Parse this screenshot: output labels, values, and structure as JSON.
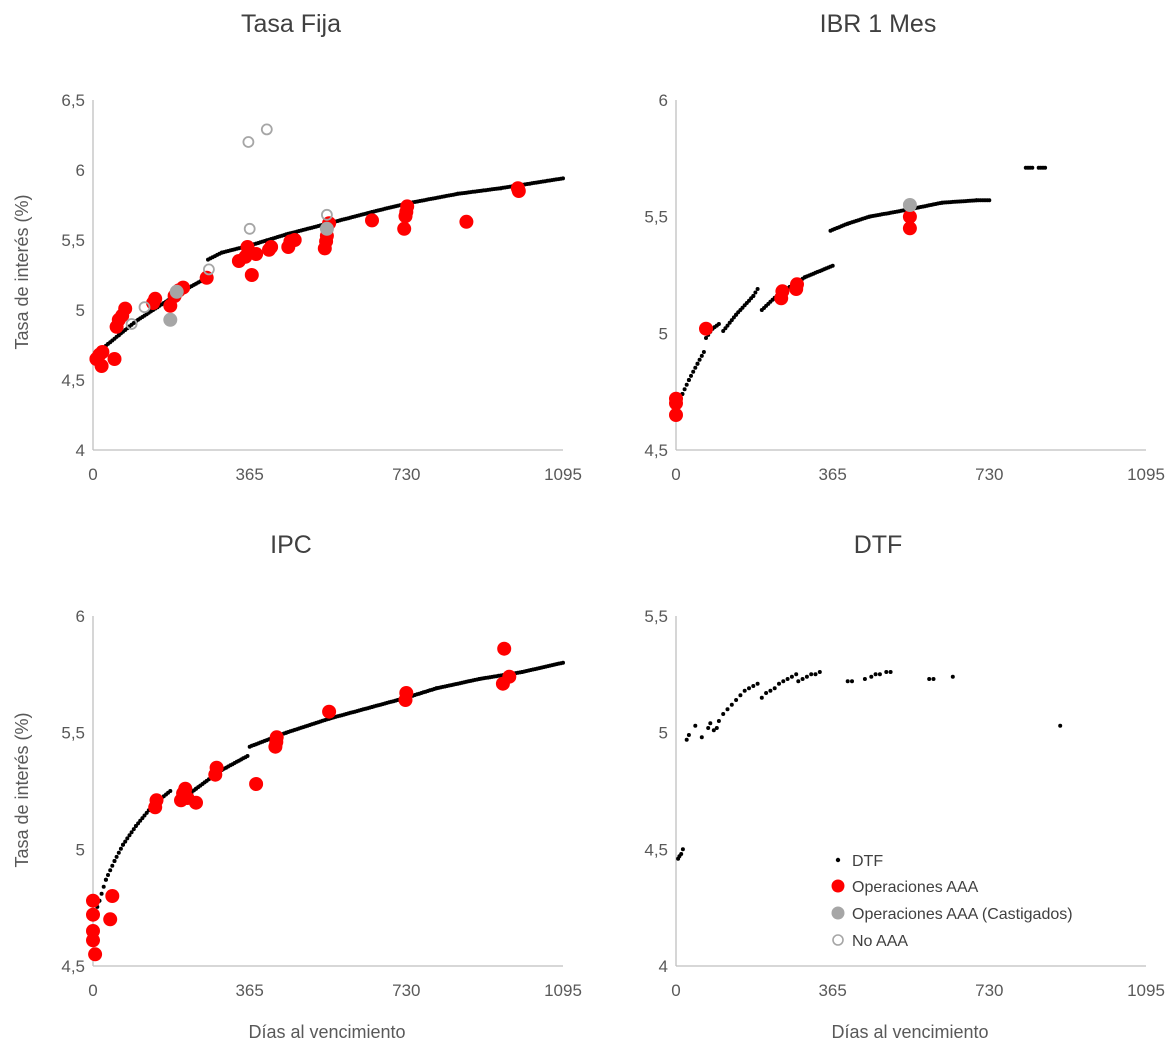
{
  "colors": {
    "curve": "#000000",
    "aaa": "#ff0000",
    "castigados": "#a6a6a6",
    "no_aaa": "#a6a6a6",
    "axis": "#bfbfbf",
    "text": "#595959"
  },
  "legend": {
    "items": [
      {
        "key": "curve",
        "label": "DTF",
        "marker": "small-dot"
      },
      {
        "key": "aaa",
        "label": "Operaciones AAA",
        "marker": "filled-circle"
      },
      {
        "key": "castigados",
        "label": "Operaciones AAA (Castigados)",
        "marker": "filled-circle"
      },
      {
        "key": "no_aaa",
        "label": "No AAA",
        "marker": "hollow-circle"
      }
    ]
  },
  "chart_data": [
    {
      "type": "scatter",
      "title": "Tasa Fija",
      "ylabel": "Tasa de interés (%)",
      "xlabel": "",
      "xlim": [
        0,
        1095
      ],
      "ylim": [
        4,
        6.5
      ],
      "xticks": [
        0,
        365,
        730,
        1095
      ],
      "xtick_labels": [
        "0",
        "365",
        "730",
        "1095"
      ],
      "yticks": [
        4,
        4.5,
        5,
        5.5,
        6,
        6.5
      ],
      "ytick_labels": [
        "4",
        "4,5",
        "5",
        "5,5",
        "6",
        "6,5"
      ],
      "curve": {
        "segments": [
          [
            [
              0,
              4.66
            ],
            [
              20,
              4.72
            ],
            [
              60,
              4.82
            ],
            [
              100,
              4.92
            ],
            [
              150,
              5.02
            ],
            [
              200,
              5.12
            ],
            [
              265,
              5.23
            ]
          ],
          [
            [
              268,
              5.36
            ],
            [
              300,
              5.41
            ],
            [
              365,
              5.46
            ],
            [
              450,
              5.54
            ],
            [
              550,
              5.62
            ],
            [
              650,
              5.7
            ],
            [
              730,
              5.76
            ],
            [
              850,
              5.83
            ],
            [
              950,
              5.87
            ],
            [
              1095,
              5.94
            ]
          ]
        ]
      },
      "series": [
        {
          "name": "Operaciones AAA",
          "points": [
            [
              8,
              4.65
            ],
            [
              15,
              4.68
            ],
            [
              20,
              4.6
            ],
            [
              22,
              4.7
            ],
            [
              50,
              4.65
            ],
            [
              55,
              4.88
            ],
            [
              60,
              4.93
            ],
            [
              68,
              4.96
            ],
            [
              75,
              5.01
            ],
            [
              140,
              5.05
            ],
            [
              145,
              5.08
            ],
            [
              180,
              5.03
            ],
            [
              190,
              5.1
            ],
            [
              200,
              5.14
            ],
            [
              210,
              5.16
            ],
            [
              265,
              5.23
            ],
            [
              340,
              5.35
            ],
            [
              355,
              5.38
            ],
            [
              360,
              5.45
            ],
            [
              365,
              5.41
            ],
            [
              370,
              5.25
            ],
            [
              380,
              5.4
            ],
            [
              410,
              5.43
            ],
            [
              415,
              5.45
            ],
            [
              455,
              5.45
            ],
            [
              460,
              5.49
            ],
            [
              470,
              5.5
            ],
            [
              540,
              5.44
            ],
            [
              543,
              5.49
            ],
            [
              545,
              5.53
            ],
            [
              550,
              5.62
            ],
            [
              650,
              5.64
            ],
            [
              725,
              5.58
            ],
            [
              728,
              5.67
            ],
            [
              730,
              5.7
            ],
            [
              732,
              5.74
            ],
            [
              870,
              5.63
            ],
            [
              990,
              5.87
            ],
            [
              992,
              5.85
            ]
          ]
        },
        {
          "name": "Operaciones AAA (Castigados)",
          "points": [
            [
              180,
              4.93
            ],
            [
              195,
              5.13
            ],
            [
              545,
              5.58
            ]
          ]
        },
        {
          "name": "No AAA",
          "points": [
            [
              90,
              4.9
            ],
            [
              120,
              5.02
            ],
            [
              270,
              5.29
            ],
            [
              365,
              5.58
            ],
            [
              362,
              6.2
            ],
            [
              405,
              6.29
            ],
            [
              545,
              5.68
            ]
          ]
        }
      ]
    },
    {
      "type": "scatter",
      "title": "IBR 1 Mes",
      "ylabel": "",
      "xlabel": "",
      "xlim": [
        0,
        1095
      ],
      "ylim": [
        4.5,
        6
      ],
      "xticks": [
        0,
        365,
        730,
        1095
      ],
      "xtick_labels": [
        "0",
        "365",
        "730",
        "1095"
      ],
      "yticks": [
        4.5,
        5,
        5.5,
        6
      ],
      "ytick_labels": [
        "4,5",
        "5",
        "5,5",
        "6"
      ],
      "curve": {
        "segments": [
          [
            [
              0,
              4.68
            ],
            [
              15,
              4.74
            ],
            [
              30,
              4.8
            ],
            [
              50,
              4.87
            ],
            [
              65,
              4.92
            ]
          ],
          [
            [
              70,
              4.98
            ],
            [
              85,
              5.02
            ],
            [
              100,
              5.04
            ]
          ],
          [
            [
              110,
              5.01
            ],
            [
              140,
              5.08
            ],
            [
              180,
              5.16
            ],
            [
              190,
              5.19
            ]
          ],
          [
            [
              200,
              5.1
            ],
            [
              240,
              5.17
            ],
            [
              300,
              5.24
            ],
            [
              365,
              5.29
            ]
          ],
          [
            [
              360,
              5.44
            ],
            [
              400,
              5.47
            ],
            [
              450,
              5.5
            ],
            [
              540,
              5.53
            ],
            [
              620,
              5.56
            ],
            [
              700,
              5.57
            ],
            [
              730,
              5.57
            ]
          ],
          [
            [
              815,
              5.71
            ],
            [
              830,
              5.71
            ]
          ],
          [
            [
              845,
              5.71
            ],
            [
              860,
              5.71
            ]
          ]
        ]
      },
      "series": [
        {
          "name": "Operaciones AAA",
          "points": [
            [
              0,
              4.65
            ],
            [
              0,
              4.7
            ],
            [
              0,
              4.72
            ],
            [
              70,
              5.02
            ],
            [
              245,
              5.15
            ],
            [
              248,
              5.18
            ],
            [
              280,
              5.19
            ],
            [
              282,
              5.21
            ],
            [
              545,
              5.45
            ],
            [
              545,
              5.5
            ]
          ]
        },
        {
          "name": "Operaciones AAA (Castigados)",
          "points": [
            [
              545,
              5.55
            ]
          ]
        },
        {
          "name": "No AAA",
          "points": []
        }
      ]
    },
    {
      "type": "scatter",
      "title": "IPC",
      "ylabel": "Tasa de interés (%)",
      "xlabel": "Días al vencimiento",
      "xlim": [
        0,
        1095
      ],
      "ylim": [
        4.5,
        6
      ],
      "xticks": [
        0,
        365,
        730,
        1095
      ],
      "xtick_labels": [
        "0",
        "365",
        "730",
        "1095"
      ],
      "yticks": [
        4.5,
        5,
        5.5,
        6
      ],
      "ytick_labels": [
        "4,5",
        "5",
        "5,5",
        "6"
      ],
      "curve": {
        "segments": [
          [
            [
              0,
              4.7
            ],
            [
              15,
              4.78
            ],
            [
              30,
              4.87
            ],
            [
              50,
              4.95
            ],
            [
              70,
              5.02
            ],
            [
              100,
              5.1
            ],
            [
              140,
              5.19
            ],
            [
              180,
              5.25
            ]
          ],
          [
            [
              200,
              5.2
            ],
            [
              240,
              5.26
            ],
            [
              300,
              5.34
            ],
            [
              360,
              5.4
            ]
          ],
          [
            [
              365,
              5.44
            ],
            [
              450,
              5.5
            ],
            [
              550,
              5.56
            ],
            [
              650,
              5.61
            ],
            [
              730,
              5.65
            ],
            [
              800,
              5.69
            ],
            [
              900,
              5.73
            ],
            [
              1000,
              5.76
            ],
            [
              1095,
              5.8
            ]
          ]
        ]
      },
      "series": [
        {
          "name": "Operaciones AAA",
          "points": [
            [
              0,
              4.61
            ],
            [
              0,
              4.65
            ],
            [
              0,
              4.72
            ],
            [
              0,
              4.78
            ],
            [
              5,
              4.55
            ],
            [
              40,
              4.7
            ],
            [
              45,
              4.8
            ],
            [
              145,
              5.18
            ],
            [
              148,
              5.21
            ],
            [
              205,
              5.21
            ],
            [
              210,
              5.24
            ],
            [
              215,
              5.26
            ],
            [
              220,
              5.22
            ],
            [
              240,
              5.2
            ],
            [
              285,
              5.32
            ],
            [
              288,
              5.35
            ],
            [
              380,
              5.28
            ],
            [
              425,
              5.44
            ],
            [
              427,
              5.46
            ],
            [
              428,
              5.48
            ],
            [
              550,
              5.59
            ],
            [
              728,
              5.64
            ],
            [
              730,
              5.67
            ],
            [
              955,
              5.71
            ],
            [
              958,
              5.86
            ],
            [
              970,
              5.74
            ]
          ]
        },
        {
          "name": "Operaciones AAA (Castigados)",
          "points": []
        },
        {
          "name": "No AAA",
          "points": []
        }
      ]
    },
    {
      "type": "scatter",
      "title": "DTF",
      "ylabel": "",
      "xlabel": "Días al vencimiento",
      "xlim": [
        0,
        1095
      ],
      "ylim": [
        4,
        5.5
      ],
      "xticks": [
        0,
        365,
        730,
        1095
      ],
      "xtick_labels": [
        "0",
        "365",
        "730",
        "1095"
      ],
      "yticks": [
        4,
        4.5,
        5,
        5.5
      ],
      "ytick_labels": [
        "4",
        "4,5",
        "5",
        "5,5"
      ],
      "curve": {
        "points": [
          [
            5,
            4.46
          ],
          [
            8,
            4.47
          ],
          [
            12,
            4.48
          ],
          [
            16,
            4.5
          ],
          [
            25,
            4.97
          ],
          [
            30,
            4.99
          ],
          [
            45,
            5.03
          ],
          [
            60,
            4.98
          ],
          [
            75,
            5.02
          ],
          [
            80,
            5.04
          ],
          [
            88,
            5.01
          ],
          [
            95,
            5.02
          ],
          [
            100,
            5.05
          ],
          [
            110,
            5.08
          ],
          [
            120,
            5.1
          ],
          [
            130,
            5.12
          ],
          [
            140,
            5.14
          ],
          [
            150,
            5.16
          ],
          [
            160,
            5.18
          ],
          [
            170,
            5.19
          ],
          [
            180,
            5.2
          ],
          [
            190,
            5.21
          ],
          [
            200,
            5.15
          ],
          [
            210,
            5.17
          ],
          [
            220,
            5.18
          ],
          [
            230,
            5.19
          ],
          [
            240,
            5.21
          ],
          [
            250,
            5.22
          ],
          [
            260,
            5.23
          ],
          [
            270,
            5.24
          ],
          [
            280,
            5.25
          ],
          [
            285,
            5.22
          ],
          [
            295,
            5.23
          ],
          [
            305,
            5.24
          ],
          [
            315,
            5.25
          ],
          [
            325,
            5.25
          ],
          [
            335,
            5.26
          ],
          [
            400,
            5.22
          ],
          [
            410,
            5.22
          ],
          [
            440,
            5.23
          ],
          [
            455,
            5.24
          ],
          [
            465,
            5.25
          ],
          [
            475,
            5.25
          ],
          [
            490,
            5.26
          ],
          [
            500,
            5.26
          ],
          [
            590,
            5.23
          ],
          [
            600,
            5.23
          ],
          [
            645,
            5.24
          ],
          [
            895,
            5.03
          ]
        ]
      },
      "series": [
        {
          "name": "Operaciones AAA",
          "points": []
        },
        {
          "name": "Operaciones AAA (Castigados)",
          "points": []
        },
        {
          "name": "No AAA",
          "points": []
        }
      ]
    }
  ]
}
